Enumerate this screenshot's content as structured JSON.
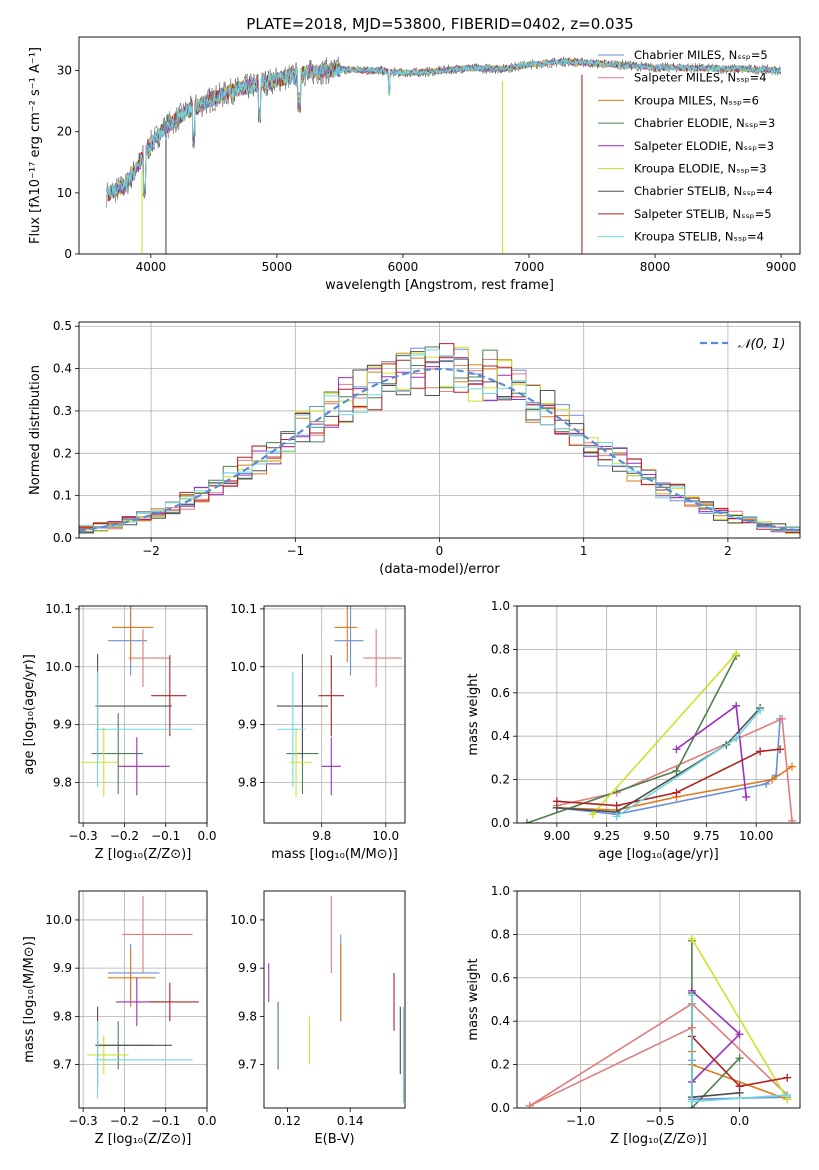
{
  "colors": [
    "#6b8fd6",
    "#e17c7c",
    "#e07b1e",
    "#4f7f4f",
    "#9d2ebd",
    "#cde22a",
    "#505050",
    "#b22222",
    "#6ed9e0"
  ],
  "chart_data": [
    {
      "id": "spectrum",
      "type": "line",
      "title": "PLATE=2018, MJD=53800, FIBERID=0402, z=0.035",
      "xlabel": "wavelength [Angstrom, rest frame]",
      "ylabel": "Flux [fλ10⁻¹⁷ erg cm⁻² s⁻¹ A⁻¹]",
      "xlim": [
        3430,
        9150
      ],
      "ylim": [
        0,
        35.5
      ],
      "xticks": [
        "4000",
        "5000",
        "6000",
        "7000",
        "8000",
        "9000"
      ],
      "yticks": [
        "0",
        "10",
        "20",
        "30"
      ],
      "wavelength_range": [
        3650,
        9000
      ],
      "continuum": {
        "x": [
          3650,
          3800,
          3900,
          4000,
          4100,
          4200,
          4300,
          4500,
          4700,
          5000,
          5200,
          5500,
          5800,
          6000,
          6200,
          6500,
          6800,
          7000,
          7300,
          7500,
          7700,
          8000,
          8200,
          8500,
          8800,
          9000
        ],
        "y": [
          9.8,
          11.2,
          14.5,
          18.0,
          20.5,
          22.0,
          23.5,
          25.5,
          27.0,
          28.5,
          29.5,
          30.2,
          30.0,
          29.6,
          29.8,
          30.4,
          30.3,
          31.0,
          31.5,
          31.2,
          31.0,
          30.5,
          30.5,
          30.3,
          30.2,
          30.0
        ]
      },
      "dips": [
        {
          "series": 5,
          "x": 3930,
          "to": 0
        },
        {
          "series": 6,
          "x": 4120,
          "to": 0
        },
        {
          "series": 5,
          "x": 6790,
          "to": 0
        },
        {
          "series": 7,
          "x": 7420,
          "to": 0
        }
      ],
      "legend": [
        {
          "label": "Chabrier MILES, Nₛₛₚ=5",
          "color": "#6b8fd6"
        },
        {
          "label": "Salpeter MILES, Nₛₛₚ=4",
          "color": "#e17c7c"
        },
        {
          "label": "Kroupa MILES, Nₛₛₚ=6",
          "color": "#e07b1e"
        },
        {
          "label": "Chabrier ELODIE, Nₛₛₚ=3",
          "color": "#4f7f4f"
        },
        {
          "label": "Salpeter ELODIE, Nₛₛₚ=3",
          "color": "#9d2ebd"
        },
        {
          "label": "Kroupa ELODIE, Nₛₛₚ=3",
          "color": "#cde22a"
        },
        {
          "label": "Chabrier STELIB, Nₛₛₚ=4",
          "color": "#505050"
        },
        {
          "label": "Salpeter STELIB, Nₛₛₚ=5",
          "color": "#b22222"
        },
        {
          "label": "Kroupa STELIB, Nₛₛₚ=4",
          "color": "#6ed9e0"
        }
      ],
      "legend_placement": "right"
    },
    {
      "id": "residuals",
      "type": "line",
      "xlabel": "(data-model)/error",
      "ylabel": "Normed distribution",
      "xlim": [
        -2.5,
        2.5
      ],
      "ylim": [
        0,
        0.51
      ],
      "xticks": [
        "−2",
        "−1",
        "0",
        "1",
        "2"
      ],
      "yticks": [
        "0.0",
        "0.1",
        "0.2",
        "0.3",
        "0.4",
        "0.5"
      ],
      "grid": true,
      "bin_width": 0.1,
      "legend": [
        {
          "label": "𝒩(0, 1)",
          "color": "#5b8bd6",
          "style": "dashed"
        }
      ],
      "legend_placement": "top-right"
    },
    {
      "id": "age_vs_Z",
      "type": "scatter",
      "xlabel": "Z [log₁₀(Z/Z⊙)]",
      "ylabel": "age  [log₁₀(age/yr)]",
      "xlim": [
        -0.31,
        0.0
      ],
      "ylim": [
        9.73,
        10.105
      ],
      "xticks": [
        "−0.3",
        "−0.2",
        "−0.1",
        "0.0"
      ],
      "yticks": [
        "9.8",
        "9.9",
        "10.0",
        "10.1"
      ],
      "grid": true,
      "points": [
        {
          "x": -0.185,
          "xerr": [
            0.055,
            0.04
          ],
          "y": 10.045,
          "yerr": 0.06,
          "c": 0
        },
        {
          "x": -0.155,
          "xerr": [
            0.035,
            0.065
          ],
          "y": 10.015,
          "yerr": 0.05,
          "c": 1
        },
        {
          "x": -0.185,
          "xerr": [
            0.045,
            0.055
          ],
          "y": 10.068,
          "yerr": 0.06,
          "c": 2
        },
        {
          "x": -0.215,
          "xerr": [
            0.065,
            0.06
          ],
          "y": 9.85,
          "yerr": 0.07,
          "c": 3
        },
        {
          "x": -0.17,
          "xerr": [
            0.045,
            0.08
          ],
          "y": 9.828,
          "yerr": 0.05,
          "c": 4
        },
        {
          "x": -0.25,
          "xerr": [
            0.055,
            0.035
          ],
          "y": 9.835,
          "yerr": 0.06,
          "c": 5
        },
        {
          "x": -0.265,
          "xerr": [
            0.005,
            0.18
          ],
          "y": 9.932,
          "yerr": 0.09,
          "c": 6
        },
        {
          "x": -0.09,
          "xerr": [
            0.045,
            0.04
          ],
          "y": 9.95,
          "yerr": 0.07,
          "c": 7
        },
        {
          "x": -0.265,
          "xerr": [
            0.005,
            0.23
          ],
          "y": 9.892,
          "yerr": 0.1,
          "c": 8
        }
      ]
    },
    {
      "id": "age_vs_mass",
      "type": "scatter",
      "xlabel": "mass [log₁₀(M/M⊙)]",
      "ylabel": "",
      "xlim": [
        9.62,
        10.06
      ],
      "ylim": [
        9.73,
        10.105
      ],
      "xticks": [
        "9.8",
        "10.0"
      ],
      "yticks": [
        "9.8",
        "9.9",
        "10.0",
        "10.1"
      ],
      "grid": true,
      "points": [
        {
          "x": 9.89,
          "xerr": [
            0.05,
            0.04
          ],
          "y": 10.045,
          "yerr": 0.06,
          "c": 0
        },
        {
          "x": 9.97,
          "xerr": [
            0.04,
            0.08
          ],
          "y": 10.015,
          "yerr": 0.05,
          "c": 1
        },
        {
          "x": 9.88,
          "xerr": [
            0.04,
            0.03
          ],
          "y": 10.068,
          "yerr": 0.06,
          "c": 2
        },
        {
          "x": 9.74,
          "xerr": [
            0.05,
            0.05
          ],
          "y": 9.85,
          "yerr": 0.07,
          "c": 3
        },
        {
          "x": 9.83,
          "xerr": [
            0.03,
            0.03
          ],
          "y": 9.828,
          "yerr": 0.05,
          "c": 4
        },
        {
          "x": 9.72,
          "xerr": [
            0.02,
            0.05
          ],
          "y": 9.835,
          "yerr": 0.06,
          "c": 5
        },
        {
          "x": 9.74,
          "xerr": [
            0.08,
            0.08
          ],
          "y": 9.932,
          "yerr": 0.09,
          "c": 6
        },
        {
          "x": 9.83,
          "xerr": [
            0.04,
            0.04
          ],
          "y": 9.95,
          "yerr": 0.07,
          "c": 7
        },
        {
          "x": 9.71,
          "xerr": [
            0.05,
            0.04
          ],
          "y": 9.892,
          "yerr": 0.1,
          "c": 8
        }
      ]
    },
    {
      "id": "massweight_vs_age",
      "type": "line",
      "xlabel": "age  [log₁₀(age/yr)]",
      "ylabel": "mass weight",
      "xlim": [
        8.8,
        10.22
      ],
      "ylim": [
        0,
        1.0
      ],
      "xticks": [
        "9.00",
        "9.25",
        "9.50",
        "9.75",
        "10.00"
      ],
      "yticks": [
        "0.0",
        "0.2",
        "0.4",
        "0.6",
        "0.8",
        "1.0"
      ],
      "grid": true,
      "series": [
        {
          "c": 0,
          "x": [
            9.0,
            9.3,
            10.05,
            10.1,
            10.12
          ],
          "y": [
            0.07,
            0.04,
            0.18,
            0.22,
            0.48
          ]
        },
        {
          "c": 1,
          "x": [
            9.0,
            9.3,
            10.13,
            10.18
          ],
          "y": [
            0.08,
            0.14,
            0.48,
            0.01
          ]
        },
        {
          "c": 2,
          "x": [
            9.0,
            9.3,
            9.6,
            10.08,
            10.18
          ],
          "y": [
            0.07,
            0.06,
            0.12,
            0.2,
            0.26
          ]
        },
        {
          "c": 3,
          "x": [
            8.85,
            9.6,
            9.9
          ],
          "y": [
            0.0,
            0.24,
            0.77
          ]
        },
        {
          "c": 4,
          "x": [
            9.6,
            9.9,
            9.95
          ],
          "y": [
            0.34,
            0.54,
            0.12
          ]
        },
        {
          "c": 5,
          "x": [
            9.18,
            9.9
          ],
          "y": [
            0.04,
            0.78
          ]
        },
        {
          "c": 6,
          "x": [
            9.0,
            9.3,
            9.85,
            10.02
          ],
          "y": [
            0.07,
            0.05,
            0.36,
            0.53
          ]
        },
        {
          "c": 7,
          "x": [
            9.0,
            9.3,
            9.6,
            10.02,
            10.12
          ],
          "y": [
            0.1,
            0.08,
            0.14,
            0.33,
            0.34
          ]
        },
        {
          "c": 8,
          "x": [
            9.3,
            9.9,
            10.02
          ],
          "y": [
            0.03,
            0.39,
            0.52
          ]
        }
      ]
    },
    {
      "id": "mass_vs_Z",
      "type": "scatter",
      "xlabel": "Z [log₁₀(Z/Z⊙)]",
      "ylabel": "mass [log₁₀(M/M⊙)]",
      "xlim": [
        -0.31,
        0.0
      ],
      "ylim": [
        9.61,
        10.06
      ],
      "xticks": [
        "−0.3",
        "−0.2",
        "−0.1",
        "0.0"
      ],
      "yticks": [
        "9.7",
        "9.8",
        "9.9",
        "10.0"
      ],
      "grid": true,
      "points": [
        {
          "x": -0.185,
          "xerr": [
            0.055,
            0.07
          ],
          "y": 9.89,
          "yerr": 0.06,
          "c": 0
        },
        {
          "x": -0.155,
          "xerr": [
            0.05,
            0.12
          ],
          "y": 9.97,
          "yerr": 0.08,
          "c": 1
        },
        {
          "x": -0.185,
          "xerr": [
            0.055,
            0.06
          ],
          "y": 9.88,
          "yerr": 0.06,
          "c": 2
        },
        {
          "x": -0.215,
          "xerr": [
            0.055,
            0.085
          ],
          "y": 9.74,
          "yerr": 0.05,
          "c": 3
        },
        {
          "x": -0.17,
          "xerr": [
            0.05,
            0.07
          ],
          "y": 9.83,
          "yerr": 0.05,
          "c": 4
        },
        {
          "x": -0.25,
          "xerr": [
            0.04,
            0.06
          ],
          "y": 9.72,
          "yerr": 0.04,
          "c": 5
        },
        {
          "x": -0.265,
          "xerr": [
            0.005,
            0.18
          ],
          "y": 9.74,
          "yerr": 0.08,
          "c": 6
        },
        {
          "x": -0.09,
          "xerr": [
            0.05,
            0.07
          ],
          "y": 9.83,
          "yerr": 0.04,
          "c": 7
        },
        {
          "x": -0.265,
          "xerr": [
            0.005,
            0.23
          ],
          "y": 9.71,
          "yerr": 0.08,
          "c": 8
        }
      ]
    },
    {
      "id": "mass_vs_EBV",
      "type": "scatter",
      "xlabel": "E(B-V)",
      "ylabel": "",
      "xlim": [
        0.1125,
        0.1575
      ],
      "ylim": [
        9.61,
        10.06
      ],
      "xticks": [
        "0.12",
        "0.14"
      ],
      "yticks": [
        "9.7",
        "9.8",
        "9.9",
        "10.0"
      ],
      "grid": false,
      "points": [
        {
          "x": 0.137,
          "y": 9.88,
          "yerr": 0.09,
          "c": 0
        },
        {
          "x": 0.134,
          "y": 9.97,
          "yerr": 0.08,
          "c": 1
        },
        {
          "x": 0.137,
          "y": 9.87,
          "yerr": 0.08,
          "c": 2
        },
        {
          "x": 0.117,
          "y": 9.76,
          "yerr": 0.07,
          "c": 3
        },
        {
          "x": 0.114,
          "y": 9.87,
          "yerr": 0.04,
          "c": 4
        },
        {
          "x": 0.127,
          "y": 9.75,
          "yerr": 0.05,
          "c": 5
        },
        {
          "x": 0.156,
          "y": 9.75,
          "yerr": 0.07,
          "c": 6
        },
        {
          "x": 0.154,
          "y": 9.83,
          "yerr": 0.06,
          "c": 7
        },
        {
          "x": 0.157,
          "y": 9.72,
          "yerr": 0.1,
          "c": 8
        }
      ]
    },
    {
      "id": "massweight_vs_Z",
      "type": "line",
      "xlabel": "Z [log₁₀(Z/Z⊙)]",
      "ylabel": "mass weight",
      "xlim": [
        -1.4,
        0.38
      ],
      "ylim": [
        0,
        1.0
      ],
      "xticks": [
        "−1.0",
        "−0.5",
        "0.0"
      ],
      "yticks": [
        "0.0",
        "0.2",
        "0.4",
        "0.6",
        "0.8",
        "1.0"
      ],
      "grid": true,
      "series": [
        {
          "c": 0,
          "x": [
            -0.3,
            -0.3,
            -0.3,
            0.3
          ],
          "y": [
            0.48,
            0.22,
            0.04,
            0.05
          ]
        },
        {
          "c": 1,
          "x": [
            -1.32,
            -0.3,
            0.3
          ],
          "y": [
            0.01,
            0.48,
            0.06
          ]
        },
        {
          "c": 2,
          "x": [
            -0.3,
            -0.3,
            0.3
          ],
          "y": [
            0.26,
            0.2,
            0.04
          ]
        },
        {
          "c": 3,
          "x": [
            -0.3,
            -0.3,
            0.0
          ],
          "y": [
            0.77,
            0.0,
            0.23
          ]
        },
        {
          "c": 4,
          "x": [
            -0.3,
            0.0,
            -0.3
          ],
          "y": [
            0.54,
            0.34,
            0.12
          ]
        },
        {
          "c": 5,
          "x": [
            -0.3,
            0.3
          ],
          "y": [
            0.78,
            0.04
          ]
        },
        {
          "c": 6,
          "x": [
            -0.3,
            -0.3,
            0.0
          ],
          "y": [
            0.53,
            0.05,
            0.07
          ]
        },
        {
          "c": 7,
          "x": [
            -0.3,
            0.0,
            0.3
          ],
          "y": [
            0.33,
            0.1,
            0.14
          ]
        },
        {
          "c": 8,
          "x": [
            -0.3,
            -0.3,
            0.3
          ],
          "y": [
            0.52,
            0.03,
            0.06
          ]
        },
        {
          "c": 1,
          "x": [
            -1.32,
            -0.3
          ],
          "y": [
            0.01,
            0.37
          ]
        }
      ]
    }
  ]
}
